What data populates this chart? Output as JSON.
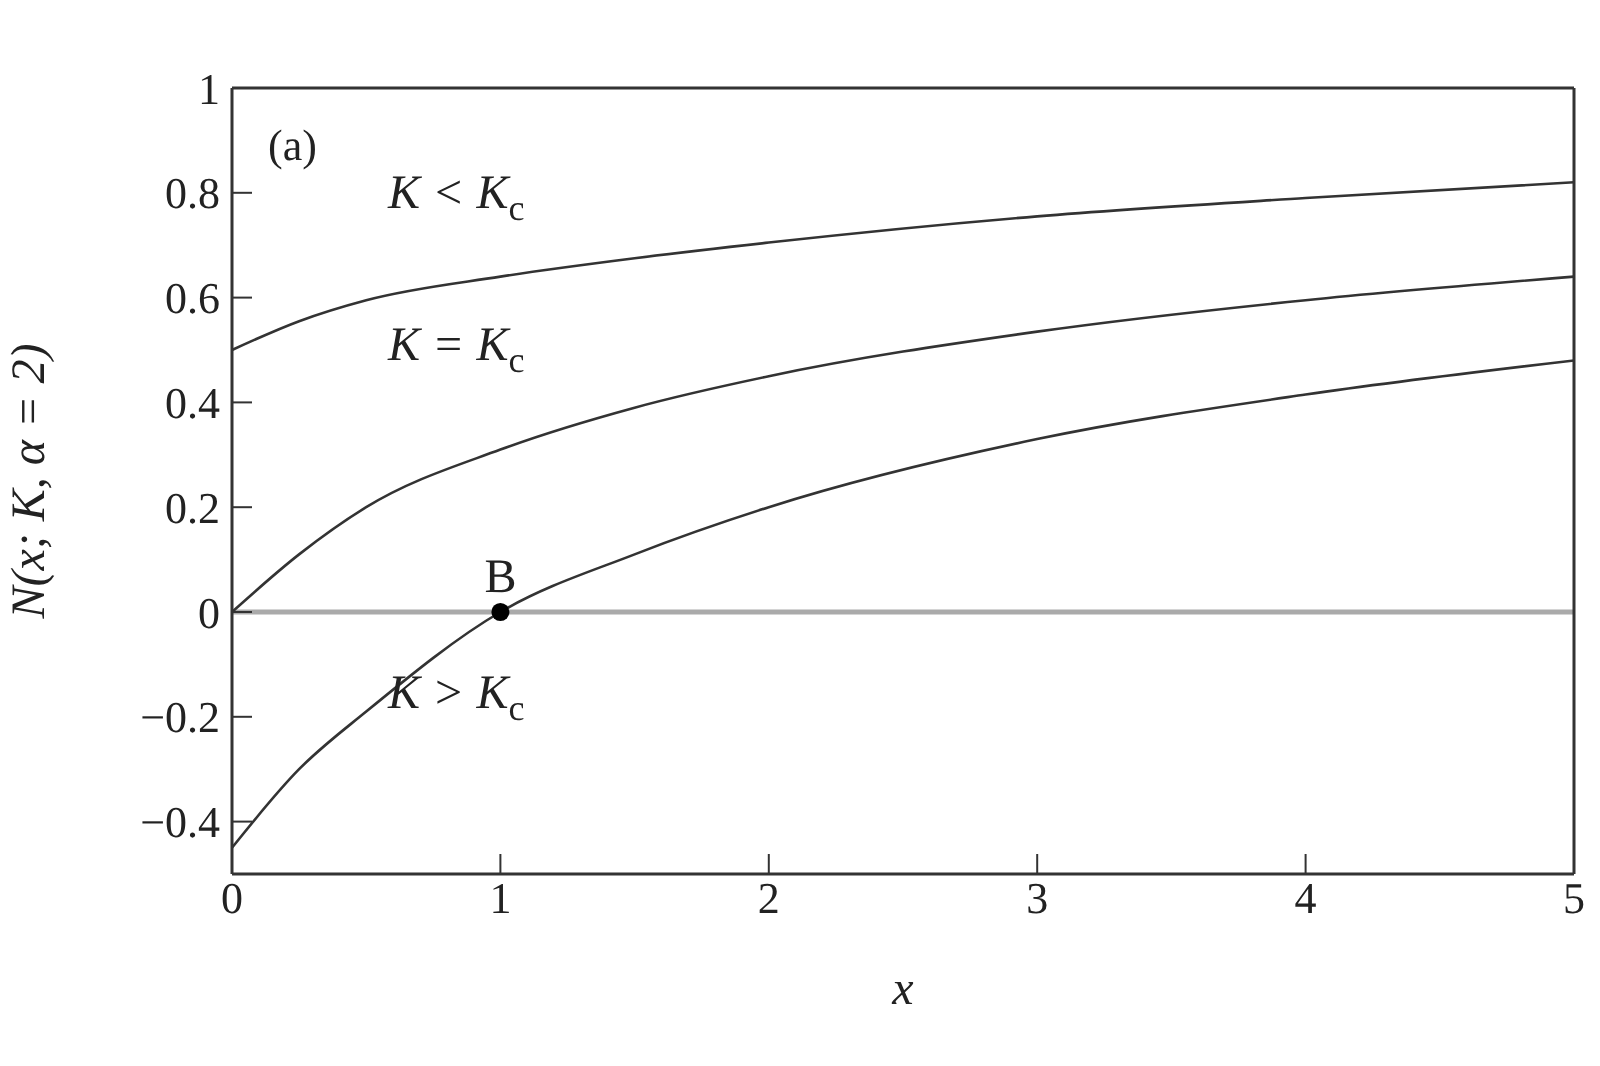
{
  "chart_data": {
    "type": "line",
    "xlabel": "x",
    "ylabel": "N(x; K, α = 2)",
    "x": [
      0,
      0.25,
      0.5,
      1,
      1.5,
      2,
      3,
      4,
      5
    ],
    "series": [
      {
        "color": "#333333",
        "values": [
          0.5,
          0.555,
          0.595,
          0.64,
          0.675,
          0.705,
          0.755,
          0.79,
          0.82
        ]
      },
      {
        "color": "#333333",
        "values": [
          0,
          0.11,
          0.2,
          0.31,
          0.39,
          0.45,
          0.535,
          0.595,
          0.64
        ]
      },
      {
        "color": "#333333",
        "values": [
          -0.45,
          -0.3,
          -0.19,
          0,
          0.11,
          0.2,
          0.33,
          0.415,
          0.48
        ]
      },
      {
        "type": "scatter",
        "color": "#000000",
        "marker": "circle",
        "x": [
          1
        ],
        "values": [
          0
        ]
      }
    ],
    "marker": "none",
    "line_style": "solid",
    "xlim": [
      0,
      5
    ],
    "xticks": [
      0,
      1,
      2,
      3,
      4,
      5
    ],
    "ylim": [
      -0.5,
      1
    ],
    "yticks": [
      -0.4,
      -0.2,
      0,
      0.2,
      0.4,
      0.6,
      0.8,
      1
    ],
    "ref_lines": [
      {
        "axis": "y",
        "value": 0,
        "color": "#aaaaaa"
      }
    ],
    "annotations": [
      "(a)",
      "K < K$_{c}$",
      "K = K$_{c}$",
      "K > K$_{c}$",
      {
        "text": "B",
        "x": 1,
        "y": 0
      }
    ]
  }
}
